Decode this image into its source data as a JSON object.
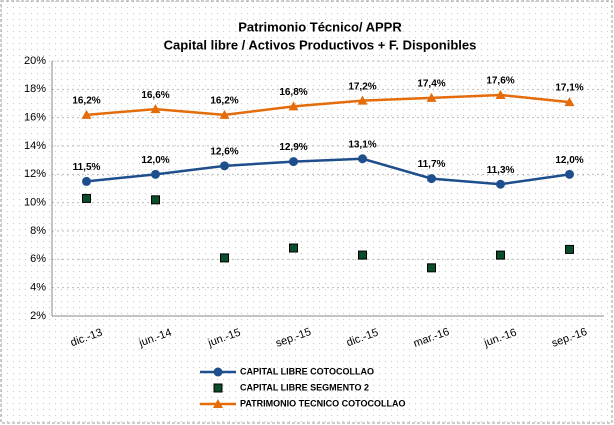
{
  "chart_data": {
    "type": "line",
    "title": [
      "Patrimonio Técnico/ APPR",
      "Capital libre / Activos Productivos + F. Disponibles"
    ],
    "categories": [
      "dic.-13",
      "jun.-14",
      "jun.-15",
      "sep.-15",
      "dic.-15",
      "mar.-16",
      "jun.-16",
      "sep.-16"
    ],
    "ylim": [
      2,
      20
    ],
    "yticks": [
      {
        "value": 2,
        "label": "2%"
      },
      {
        "value": 4,
        "label": "4%"
      },
      {
        "value": 6,
        "label": "6%"
      },
      {
        "value": 8,
        "label": "8%"
      },
      {
        "value": 10,
        "label": "10%"
      },
      {
        "value": 12,
        "label": "12%"
      },
      {
        "value": 14,
        "label": "14%"
      },
      {
        "value": 16,
        "label": "16%"
      },
      {
        "value": 18,
        "label": "18%"
      },
      {
        "value": 20,
        "label": "20%"
      }
    ],
    "grid": true,
    "series": [
      {
        "name": "CAPITAL LIBRE COTOCOLLAO",
        "color": "#1f4e8c",
        "marker": "circle",
        "line": true,
        "values": [
          11.5,
          12.0,
          12.6,
          12.9,
          13.1,
          11.7,
          11.3,
          12.0
        ],
        "value_labels": [
          "11,5%",
          "12,0%",
          "12,6%",
          "12,9%",
          "13,1%",
          "11,7%",
          "11,3%",
          "12,0%"
        ]
      },
      {
        "name": "CAPITAL LIBRE  SEGMENTO 2",
        "color": "#0b4d2a",
        "marker": "square",
        "line": false,
        "values": [
          10.3,
          10.2,
          6.1,
          6.8,
          6.3,
          5.4,
          6.3,
          6.7
        ]
      },
      {
        "name": "PATRIMONIO TECNICO COTOCOLLAO",
        "color": "#e46c0a",
        "marker": "triangle",
        "line": true,
        "values": [
          16.2,
          16.6,
          16.2,
          16.8,
          17.2,
          17.4,
          17.6,
          17.1
        ],
        "value_labels": [
          "16,2%",
          "16,6%",
          "16,2%",
          "16,8%",
          "17,2%",
          "17,4%",
          "17,6%",
          "17,1%"
        ]
      }
    ]
  }
}
